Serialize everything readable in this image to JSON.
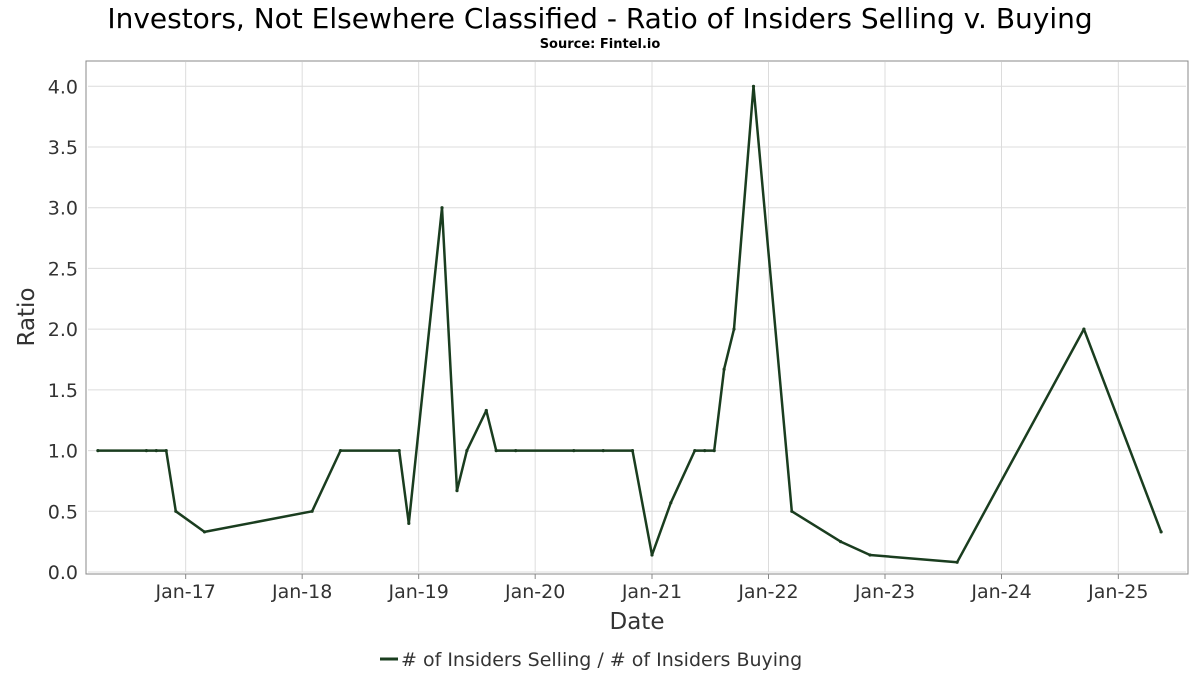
{
  "chart_data": {
    "type": "line",
    "title": "Investors, Not Elsewhere Classified - Ratio of Insiders Selling v. Buying",
    "subtitle": "Source: Fintel.io",
    "xlabel": "Date",
    "ylabel": "Ratio",
    "ylim": [
      0,
      4.2
    ],
    "y_ticks": [
      "0.0",
      "0.5",
      "1.0",
      "1.5",
      "2.0",
      "2.5",
      "3.0",
      "3.5",
      "4.0"
    ],
    "x_ticks": [
      {
        "label": "Jan-17",
        "date": "2017-01-01"
      },
      {
        "label": "Jan-18",
        "date": "2018-01-01"
      },
      {
        "label": "Jan-19",
        "date": "2019-01-01"
      },
      {
        "label": "Jan-20",
        "date": "2020-01-01"
      },
      {
        "label": "Jan-21",
        "date": "2021-01-01"
      },
      {
        "label": "Jan-22",
        "date": "2022-01-01"
      },
      {
        "label": "Jan-23",
        "date": "2023-01-01"
      },
      {
        "label": "Jan-24",
        "date": "2024-01-01"
      },
      {
        "label": "Jan-25",
        "date": "2025-01-01"
      }
    ],
    "xlim": [
      "2016-03-01",
      "2025-08-01"
    ],
    "grid": true,
    "legend_position": "bottom-center",
    "series": [
      {
        "name": "# of Insiders Selling / # of Insiders Buying",
        "color": "#1a3d1f",
        "points": [
          {
            "x": "2016-04-01",
            "y": 1.0
          },
          {
            "x": "2016-08-31",
            "y": 1.0
          },
          {
            "x": "2016-10-01",
            "y": 1.0
          },
          {
            "x": "2016-11-01",
            "y": 1.0
          },
          {
            "x": "2016-12-01",
            "y": 0.5
          },
          {
            "x": "2017-03-01",
            "y": 0.33
          },
          {
            "x": "2018-02-01",
            "y": 0.5
          },
          {
            "x": "2018-05-01",
            "y": 1.0
          },
          {
            "x": "2018-11-01",
            "y": 1.0
          },
          {
            "x": "2018-12-01",
            "y": 0.4
          },
          {
            "x": "2019-03-15",
            "y": 3.0
          },
          {
            "x": "2019-05-01",
            "y": 0.67
          },
          {
            "x": "2019-06-01",
            "y": 1.0
          },
          {
            "x": "2019-08-01",
            "y": 1.33
          },
          {
            "x": "2019-09-01",
            "y": 1.0
          },
          {
            "x": "2019-11-01",
            "y": 1.0
          },
          {
            "x": "2020-05-01",
            "y": 1.0
          },
          {
            "x": "2020-08-01",
            "y": 1.0
          },
          {
            "x": "2020-11-01",
            "y": 1.0
          },
          {
            "x": "2021-01-01",
            "y": 0.14
          },
          {
            "x": "2021-03-01",
            "y": 0.57
          },
          {
            "x": "2021-05-15",
            "y": 1.0
          },
          {
            "x": "2021-06-15",
            "y": 1.0
          },
          {
            "x": "2021-07-15",
            "y": 1.0
          },
          {
            "x": "2021-08-15",
            "y": 1.67
          },
          {
            "x": "2021-09-15",
            "y": 2.0
          },
          {
            "x": "2021-11-15",
            "y": 4.0
          },
          {
            "x": "2022-03-15",
            "y": 0.5
          },
          {
            "x": "2022-08-15",
            "y": 0.25
          },
          {
            "x": "2022-11-15",
            "y": 0.14
          },
          {
            "x": "2023-08-15",
            "y": 0.08
          },
          {
            "x": "2024-09-15",
            "y": 2.0
          },
          {
            "x": "2025-05-15",
            "y": 0.33
          }
        ]
      }
    ]
  }
}
